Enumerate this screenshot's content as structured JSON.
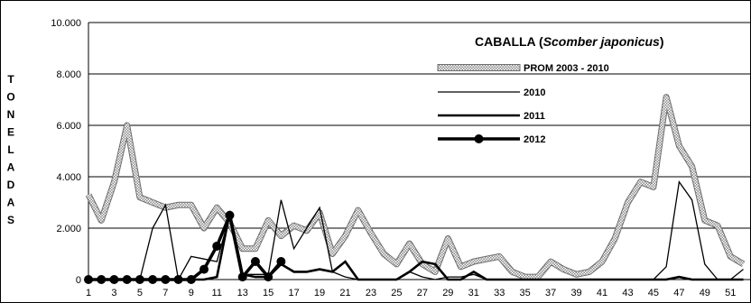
{
  "chart_data": {
    "type": "line",
    "title_prefix": "CABALLA (",
    "title_italic": "Scomber japonicus",
    "title_suffix": ")",
    "ylabel_letters": [
      "T",
      "O",
      "N",
      "E",
      "L",
      "A",
      "D",
      "A",
      "S"
    ],
    "ylim": [
      0,
      10000
    ],
    "yticks": [
      "0",
      "2.000",
      "4.000",
      "6.000",
      "8.000",
      "10.000"
    ],
    "xlim": [
      1,
      52
    ],
    "xticks": [
      "1",
      "3",
      "5",
      "7",
      "9",
      "11",
      "13",
      "15",
      "17",
      "19",
      "21",
      "23",
      "25",
      "27",
      "29",
      "31",
      "33",
      "35",
      "37",
      "39",
      "41",
      "43",
      "45",
      "47",
      "49",
      "51"
    ],
    "legend_position": "top-right",
    "grid": "horizontal",
    "series": [
      {
        "name": "PROM 2003 - 2010",
        "style": "dotted-band",
        "x": [
          1,
          2,
          3,
          4,
          5,
          6,
          7,
          8,
          9,
          10,
          11,
          12,
          13,
          14,
          15,
          16,
          17,
          18,
          19,
          20,
          21,
          22,
          23,
          24,
          25,
          26,
          27,
          28,
          29,
          30,
          31,
          32,
          33,
          34,
          35,
          36,
          37,
          38,
          39,
          40,
          41,
          42,
          43,
          44,
          45,
          46,
          47,
          48,
          49,
          50,
          51,
          52
        ],
        "values": [
          3300,
          2300,
          3800,
          6000,
          3200,
          3000,
          2800,
          2900,
          2900,
          2000,
          2800,
          2200,
          1200,
          1200,
          2300,
          1700,
          2100,
          1900,
          2600,
          1000,
          1700,
          2700,
          1800,
          1000,
          600,
          1400,
          600,
          300,
          1600,
          500,
          700,
          800,
          900,
          300,
          100,
          100,
          700,
          400,
          200,
          300,
          700,
          1600,
          3000,
          3800,
          3600,
          7100,
          5200,
          4400,
          2300,
          2100,
          900,
          600
        ]
      },
      {
        "name": "2010",
        "style": "thin",
        "x": [
          1,
          2,
          3,
          4,
          5,
          6,
          7,
          8,
          9,
          10,
          11,
          12,
          13,
          14,
          15,
          16,
          17,
          18,
          19,
          20,
          21,
          22,
          23,
          24,
          25,
          26,
          27,
          28,
          29,
          30,
          31,
          32,
          33,
          34,
          35,
          36,
          37,
          38,
          39,
          40,
          41,
          42,
          43,
          44,
          45,
          46,
          47,
          48,
          49,
          50,
          51,
          52
        ],
        "values": [
          0,
          0,
          0,
          0,
          0,
          2000,
          2900,
          0,
          900,
          800,
          700,
          2500,
          200,
          200,
          200,
          3100,
          1200,
          2000,
          2800,
          300,
          100,
          0,
          0,
          0,
          0,
          300,
          100,
          0,
          100,
          100,
          200,
          0,
          0,
          0,
          0,
          0,
          0,
          0,
          0,
          0,
          0,
          0,
          0,
          0,
          0,
          500,
          3800,
          3100,
          600,
          0,
          0,
          400
        ]
      },
      {
        "name": "2011",
        "style": "medium",
        "x": [
          1,
          2,
          3,
          4,
          5,
          6,
          7,
          8,
          9,
          10,
          11,
          12,
          13,
          14,
          15,
          16,
          17,
          18,
          19,
          20,
          21,
          22,
          23,
          24,
          25,
          26,
          27,
          28,
          29,
          30,
          31,
          32,
          33,
          34,
          35,
          36,
          37,
          38,
          39,
          40,
          41,
          42,
          43,
          44,
          45,
          46,
          47,
          48,
          49,
          50,
          51,
          52
        ],
        "values": [
          0,
          0,
          0,
          0,
          0,
          0,
          0,
          0,
          0,
          0,
          100,
          2600,
          200,
          100,
          100,
          600,
          300,
          300,
          400,
          300,
          700,
          0,
          0,
          0,
          0,
          300,
          700,
          600,
          0,
          0,
          300,
          0,
          0,
          0,
          0,
          0,
          0,
          0,
          0,
          0,
          0,
          0,
          0,
          0,
          0,
          0,
          100,
          0,
          0,
          0,
          0,
          0
        ]
      },
      {
        "name": "2012",
        "style": "markers",
        "x": [
          1,
          2,
          3,
          4,
          5,
          6,
          7,
          8,
          9,
          10,
          11,
          12,
          13,
          14,
          15,
          16
        ],
        "values": [
          0,
          0,
          0,
          0,
          0,
          0,
          0,
          0,
          0,
          400,
          1300,
          2500,
          100,
          700,
          100,
          700
        ]
      }
    ]
  }
}
